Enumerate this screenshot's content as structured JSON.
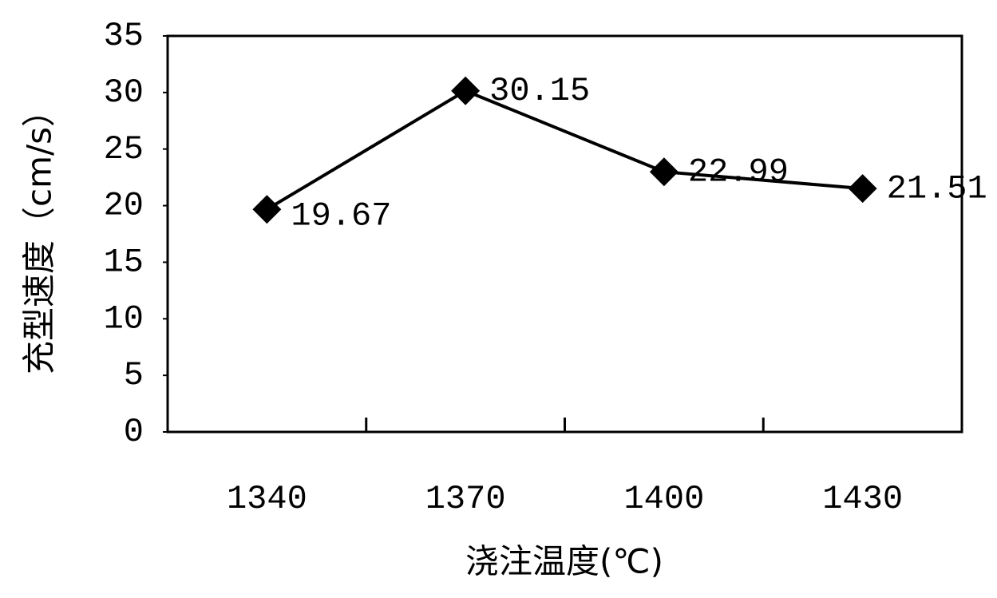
{
  "chart_data": {
    "type": "line",
    "categories": [
      "1340",
      "1370",
      "1400",
      "1430"
    ],
    "values": [
      19.67,
      30.15,
      22.99,
      21.51
    ],
    "color": "#000000",
    "ylim": [
      0,
      35
    ],
    "yticks": [
      0,
      5,
      10,
      15,
      20,
      25,
      30,
      35
    ],
    "grid": false,
    "y_label": "充型速度（cm/s）",
    "x_label": "浇注温度(℃)"
  }
}
